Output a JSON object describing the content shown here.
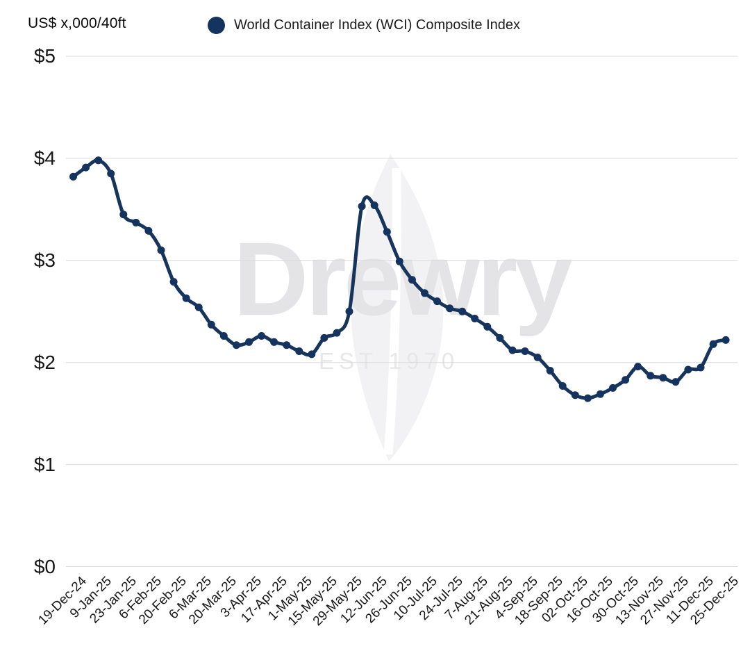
{
  "header": {
    "units_label": "US$ x,000/40ft",
    "legend": {
      "label": "World Container Index (WCI) Composite Index",
      "dot_color": "#14335e"
    }
  },
  "watermark": {
    "brand": "Drewry",
    "est": "EST 1970"
  },
  "colors": {
    "line": "#17345c",
    "marker": "#14335e",
    "grid": "#d9d9d9",
    "axis_text": "#161616",
    "background": "#ffffff",
    "watermark_text": "#e4e4e7"
  },
  "chart_data": {
    "type": "line",
    "title": "World Container Index (WCI) Composite Index",
    "units": "US$ x,000/40ft",
    "grid": "horizontal",
    "legend_position": "top",
    "marker": "circle",
    "smoothing": true,
    "ylim": [
      0,
      5
    ],
    "y_tick_labels": [
      "$0",
      "$1",
      "$2",
      "$3",
      "$4",
      "$5"
    ],
    "x_tick_labels": [
      "19-Dec-24",
      "9-Jan-25",
      "23-Jan-25",
      "6-Feb-25",
      "20-Feb-25",
      "6-Mar-25",
      "20-Mar-25",
      "3-Apr-25",
      "17-Apr-25",
      "1-May-25",
      "15-May-25",
      "29-May-25",
      "12-Jun-25",
      "26-Jun-25",
      "10-Jul-25",
      "24-Jul-25",
      "7-Aug-25",
      "21-Aug-25",
      "4-Sep-25",
      "18-Sep-25",
      "02-Oct-25",
      "16-Oct-25",
      "30-Oct-25",
      "13-Nov-25",
      "27-Nov-25",
      "11-Dec-25",
      "25-Dec-25"
    ],
    "series": [
      {
        "name": "World Container Index (WCI) Composite Index",
        "color": "#17345c",
        "x": [
          "19-Dec-24",
          "2-Jan-25",
          "9-Jan-25",
          "16-Jan-25",
          "23-Jan-25",
          "30-Jan-25",
          "6-Feb-25",
          "13-Feb-25",
          "20-Feb-25",
          "27-Feb-25",
          "6-Mar-25",
          "13-Mar-25",
          "20-Mar-25",
          "27-Mar-25",
          "3-Apr-25",
          "10-Apr-25",
          "17-Apr-25",
          "24-Apr-25",
          "1-May-25",
          "8-May-25",
          "15-May-25",
          "22-May-25",
          "29-May-25",
          "5-Jun-25",
          "12-Jun-25",
          "19-Jun-25",
          "26-Jun-25",
          "3-Jul-25",
          "10-Jul-25",
          "17-Jul-25",
          "24-Jul-25",
          "31-Jul-25",
          "7-Aug-25",
          "14-Aug-25",
          "21-Aug-25",
          "28-Aug-25",
          "4-Sep-25",
          "11-Sep-25",
          "18-Sep-25",
          "25-Sep-25",
          "02-Oct-25",
          "9-Oct-25",
          "16-Oct-25",
          "23-Oct-25",
          "30-Oct-25",
          "6-Nov-25",
          "13-Nov-25",
          "20-Nov-25",
          "27-Nov-25",
          "4-Dec-25",
          "11-Dec-25",
          "18-Dec-25",
          "25-Dec-25"
        ],
        "values": [
          3.82,
          3.91,
          3.98,
          3.85,
          3.45,
          3.37,
          3.29,
          3.1,
          2.79,
          2.63,
          2.54,
          2.37,
          2.26,
          2.17,
          2.2,
          2.26,
          2.2,
          2.17,
          2.11,
          2.08,
          2.24,
          2.29,
          2.5,
          3.53,
          3.54,
          3.28,
          2.99,
          2.81,
          2.68,
          2.6,
          2.53,
          2.5,
          2.43,
          2.35,
          2.24,
          2.12,
          2.11,
          2.05,
          1.92,
          1.77,
          1.68,
          1.65,
          1.69,
          1.75,
          1.83,
          1.96,
          1.87,
          1.85,
          1.81,
          1.93,
          1.95,
          2.18,
          2.22
        ]
      }
    ]
  }
}
